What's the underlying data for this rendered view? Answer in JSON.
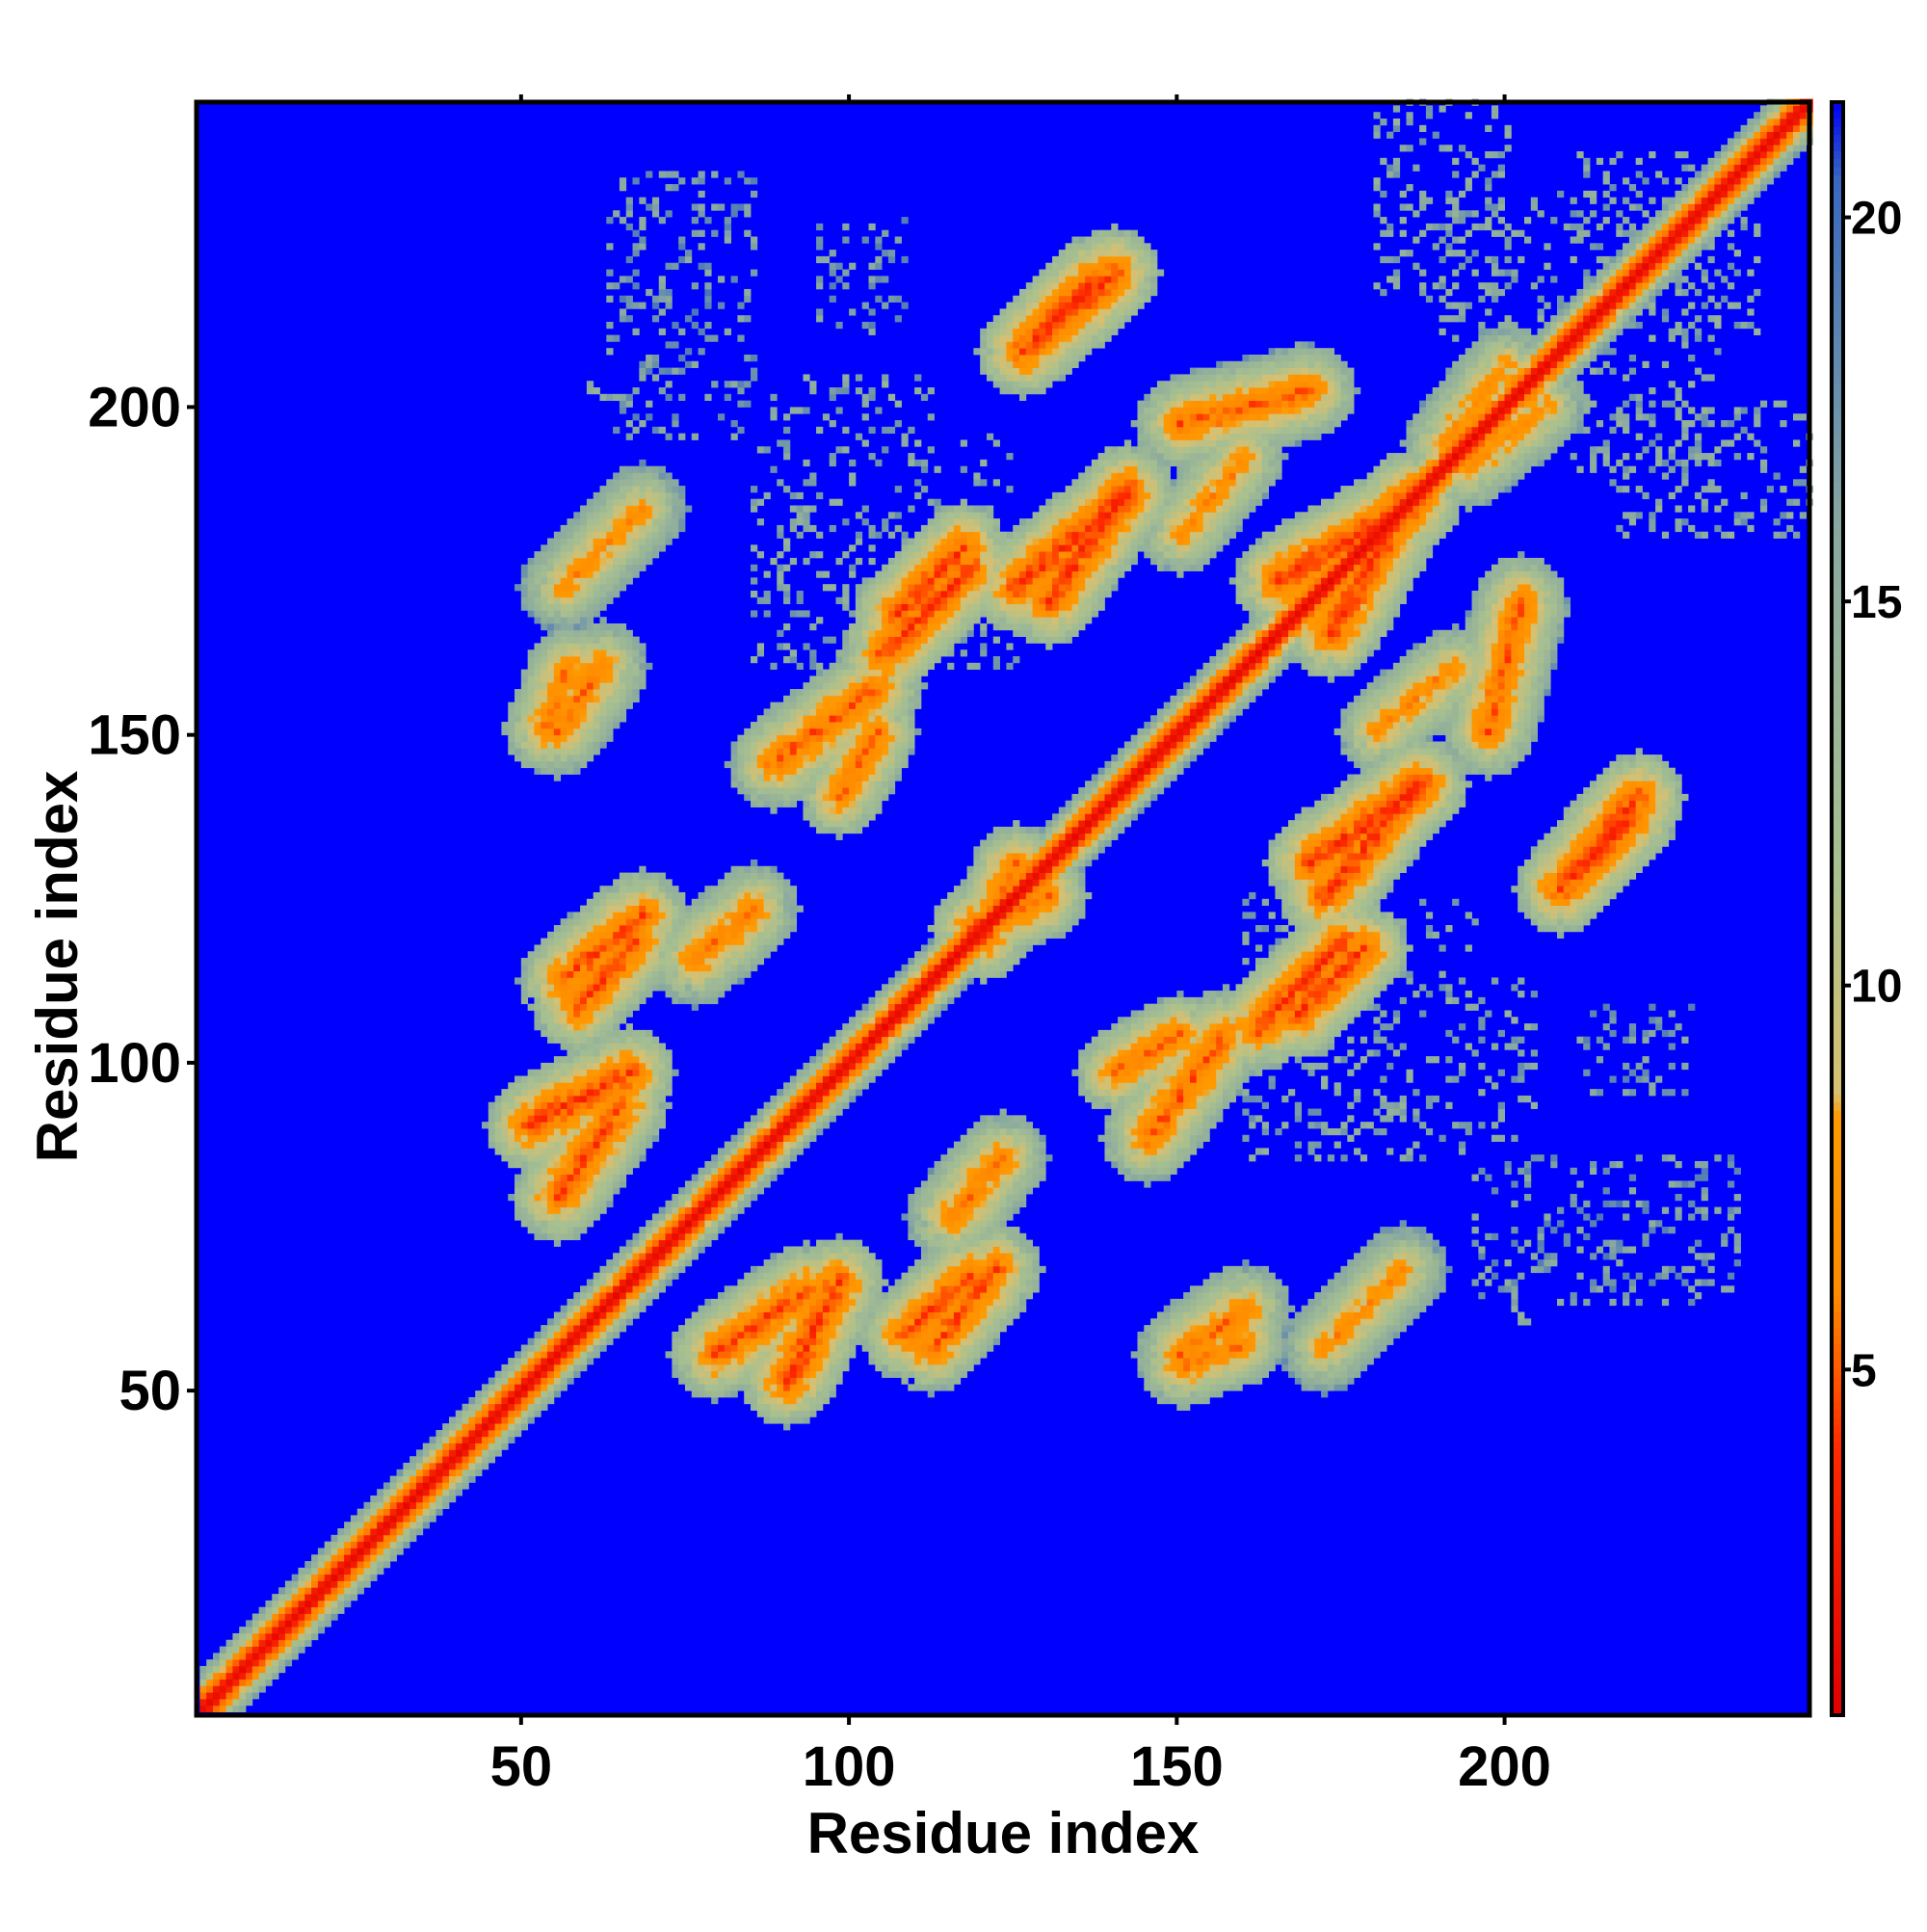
{
  "chart_data": {
    "type": "heatmap",
    "title": "",
    "xlabel": "Residue index",
    "ylabel": "Residue index",
    "n_residues": 246,
    "xlim": [
      1,
      246
    ],
    "ylim": [
      1,
      246
    ],
    "x_ticks": [
      50,
      100,
      150,
      200
    ],
    "y_ticks": [
      50,
      100,
      150,
      200
    ],
    "x_tick_labels": [
      "50",
      "100",
      "150",
      "200"
    ],
    "y_tick_labels": [
      "50",
      "100",
      "150",
      "200"
    ],
    "colorbar": {
      "range": [
        0.5,
        21.5
      ],
      "ticks": [
        5,
        10,
        15,
        20
      ],
      "tick_labels": [
        "5",
        "10",
        "15",
        "20"
      ],
      "stops": [
        {
          "value": 0.5,
          "color": "#e00000"
        },
        {
          "value": 4.0,
          "color": "#ff2a00"
        },
        {
          "value": 6.0,
          "color": "#ff8a00"
        },
        {
          "value": 8.3,
          "color": "#ff9a00"
        },
        {
          "value": 8.6,
          "color": "#d8c070"
        },
        {
          "value": 11.5,
          "color": "#a8c090"
        },
        {
          "value": 16.0,
          "color": "#88a8a0"
        },
        {
          "value": 20.5,
          "color": "#3868c0"
        },
        {
          "value": 21.5,
          "color": "#0000f8"
        }
      ]
    },
    "background_value": 21,
    "background_color": "#0000ff",
    "diagonal_band": [
      {
        "offset": 0,
        "value": 1.5
      },
      {
        "offset": 1,
        "value": 3.0
      },
      {
        "offset": 2,
        "value": 5.5
      },
      {
        "offset": 3,
        "value": 7.5
      },
      {
        "offset": 4,
        "value": 11.0
      },
      {
        "offset": 5,
        "value": 13.5
      },
      {
        "offset": 6,
        "value": 16.0
      }
    ],
    "contact_features": [
      {
        "from": [
          51,
          90
        ],
        "to": [
          66,
          98
        ],
        "min_value": 4.5,
        "kind": "beta-contact"
      },
      {
        "from": [
          56,
          112
        ],
        "to": [
          68,
          122
        ],
        "min_value": 5.0,
        "kind": "beta-contact"
      },
      {
        "from": [
          55,
          150
        ],
        "to": [
          62,
          160
        ],
        "min_value": 6.0,
        "kind": "beta-contact"
      },
      {
        "from": [
          56,
          172
        ],
        "to": [
          68,
          184
        ],
        "min_value": 7.0,
        "kind": "beta-contact"
      },
      {
        "from": [
          79,
          55
        ],
        "to": [
          93,
          65
        ],
        "min_value": 5.0,
        "kind": "beta-contact"
      },
      {
        "from": [
          108,
          58
        ],
        "to": [
          118,
          67
        ],
        "min_value": 5.0,
        "kind": "beta-contact"
      },
      {
        "from": [
          76,
          115
        ],
        "to": [
          85,
          123
        ],
        "min_value": 6.0,
        "kind": "beta-contact"
      },
      {
        "from": [
          88,
          145
        ],
        "to": [
          104,
          157
        ],
        "min_value": 5.5,
        "kind": "beta-contact"
      },
      {
        "from": [
          105,
          162
        ],
        "to": [
          118,
          175
        ],
        "min_value": 4.5,
        "kind": "beta-contact"
      },
      {
        "from": [
          125,
          172
        ],
        "to": [
          142,
          186
        ],
        "min_value": 4.5,
        "kind": "beta-contact"
      },
      {
        "from": [
          126,
          208
        ],
        "to": [
          140,
          220
        ],
        "min_value": 4.5,
        "kind": "beta-contact"
      },
      {
        "from": [
          150,
          197
        ],
        "to": [
          170,
          202
        ],
        "min_value": 5.5,
        "kind": "beta-contact"
      },
      {
        "from": [
          165,
          173
        ],
        "to": [
          186,
          185
        ],
        "min_value": 4.5,
        "kind": "beta-contact"
      },
      {
        "from": [
          170,
          130
        ],
        "to": [
          187,
          142
        ],
        "min_value": 4.5,
        "kind": "beta-contact"
      },
      {
        "from": [
          168,
          107
        ],
        "to": [
          178,
          117
        ],
        "min_value": 4.5,
        "kind": "beta-contact"
      },
      {
        "from": [
          210,
          128
        ],
        "to": [
          219,
          137
        ],
        "min_value": 4.5,
        "kind": "beta-contact"
      },
      {
        "from": [
          140,
          98
        ],
        "to": [
          150,
          104
        ],
        "min_value": 6.0,
        "kind": "patch"
      },
      {
        "from": [
          150,
          53
        ],
        "to": [
          160,
          57
        ],
        "min_value": 6.5,
        "kind": "patch"
      },
      {
        "from": [
          118,
          120
        ],
        "to": [
          130,
          125
        ],
        "min_value": 6.0,
        "kind": "patch"
      },
      {
        "from": [
          180,
          150
        ],
        "to": [
          192,
          160
        ],
        "min_value": 7.0,
        "kind": "patch"
      },
      {
        "from": [
          194,
          190
        ],
        "to": [
          206,
          200
        ],
        "min_value": 7.5,
        "kind": "patch"
      }
    ],
    "sparse_regions": [
      {
        "x": [
          58,
          66
        ],
        "y": [
          196,
          203
        ],
        "value": 16
      },
      {
        "x": [
          88,
          112
        ],
        "y": [
          196,
          204
        ],
        "value": 16
      },
      {
        "x": [
          66,
          78
        ],
        "y": [
          213,
          218
        ],
        "value": 18
      },
      {
        "x": [
          195,
          235
        ],
        "y": [
          63,
          85
        ],
        "value": 17
      },
      {
        "x": [
          210,
          228
        ],
        "y": [
          95,
          108
        ],
        "value": 17
      },
      {
        "x": [
          190,
          238
        ],
        "y": [
          210,
          232
        ],
        "value": 16
      },
      {
        "x": [
          215,
          247
        ],
        "y": [
          180,
          200
        ],
        "value": 16
      },
      {
        "x": [
          160,
          195
        ],
        "y": [
          85,
          125
        ],
        "value": 16
      }
    ],
    "grid": false,
    "legend": "none"
  }
}
